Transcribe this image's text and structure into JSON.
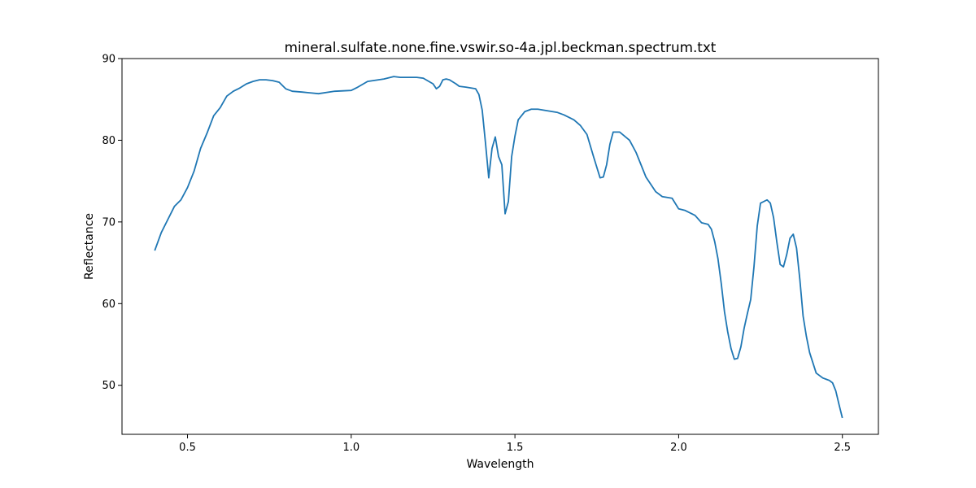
{
  "chart_data": {
    "type": "line",
    "title": "mineral.sulfate.none.fine.vswir.so-4a.jpl.beckman.spectrum.txt",
    "xlabel": "Wavelength",
    "ylabel": "Reflectance",
    "xlim": [
      0.3,
      2.61
    ],
    "ylim": [
      44,
      90
    ],
    "xticks": [
      0.5,
      1.0,
      1.5,
      2.0,
      2.5
    ],
    "xtick_labels": [
      "0.5",
      "1.0",
      "1.5",
      "2.0",
      "2.5"
    ],
    "yticks": [
      50,
      60,
      70,
      80,
      90
    ],
    "ytick_labels": [
      "50",
      "60",
      "70",
      "80",
      "90"
    ],
    "grid": false,
    "series": [
      {
        "color": "#1f77b4",
        "x": [
          0.4,
          0.42,
          0.44,
          0.46,
          0.48,
          0.5,
          0.52,
          0.54,
          0.56,
          0.58,
          0.6,
          0.62,
          0.64,
          0.66,
          0.68,
          0.7,
          0.72,
          0.74,
          0.76,
          0.78,
          0.8,
          0.82,
          0.85,
          0.9,
          0.95,
          1.0,
          1.02,
          1.05,
          1.1,
          1.13,
          1.15,
          1.2,
          1.22,
          1.25,
          1.26,
          1.27,
          1.28,
          1.29,
          1.3,
          1.32,
          1.33,
          1.35,
          1.38,
          1.39,
          1.4,
          1.41,
          1.42,
          1.43,
          1.44,
          1.45,
          1.46,
          1.47,
          1.48,
          1.49,
          1.5,
          1.51,
          1.53,
          1.55,
          1.57,
          1.6,
          1.63,
          1.65,
          1.68,
          1.7,
          1.72,
          1.74,
          1.76,
          1.77,
          1.78,
          1.79,
          1.8,
          1.82,
          1.85,
          1.87,
          1.9,
          1.93,
          1.95,
          1.98,
          2.0,
          2.02,
          2.05,
          2.07,
          2.08,
          2.09,
          2.1,
          2.11,
          2.12,
          2.13,
          2.14,
          2.15,
          2.16,
          2.17,
          2.18,
          2.19,
          2.2,
          2.21,
          2.22,
          2.23,
          2.24,
          2.25,
          2.27,
          2.28,
          2.29,
          2.3,
          2.31,
          2.32,
          2.33,
          2.34,
          2.35,
          2.36,
          2.37,
          2.38,
          2.39,
          2.4,
          2.42,
          2.44,
          2.46,
          2.47,
          2.48,
          2.49,
          2.5
        ],
        "y": [
          66.5,
          68.7,
          70.3,
          71.9,
          72.7,
          74.2,
          76.2,
          79.0,
          80.9,
          83.0,
          84.0,
          85.4,
          86.0,
          86.4,
          86.9,
          87.2,
          87.4,
          87.4,
          87.3,
          87.1,
          86.3,
          86.0,
          85.9,
          85.7,
          86.0,
          86.1,
          86.5,
          87.2,
          87.5,
          87.8,
          87.7,
          87.7,
          87.6,
          86.9,
          86.3,
          86.6,
          87.4,
          87.5,
          87.4,
          86.9,
          86.6,
          86.5,
          86.3,
          85.6,
          83.7,
          79.7,
          75.4,
          79.0,
          80.4,
          78.0,
          77.0,
          71.0,
          72.5,
          78.0,
          80.5,
          82.5,
          83.5,
          83.8,
          83.8,
          83.6,
          83.4,
          83.1,
          82.5,
          81.8,
          80.7,
          78.0,
          75.4,
          75.5,
          77.0,
          79.5,
          81.0,
          81.0,
          80.0,
          78.5,
          75.5,
          73.7,
          73.1,
          72.9,
          71.6,
          71.4,
          70.8,
          69.9,
          69.8,
          69.7,
          69.1,
          67.6,
          65.5,
          62.5,
          59.0,
          56.5,
          54.5,
          53.2,
          53.3,
          54.7,
          57.0,
          58.8,
          60.5,
          64.5,
          69.5,
          72.3,
          72.7,
          72.3,
          70.5,
          67.5,
          64.8,
          64.5,
          66.0,
          68.0,
          68.5,
          66.8,
          63.0,
          58.5,
          56.0,
          54.0,
          51.5,
          50.9,
          50.6,
          50.3,
          49.3,
          47.6,
          46.0
        ]
      }
    ]
  }
}
